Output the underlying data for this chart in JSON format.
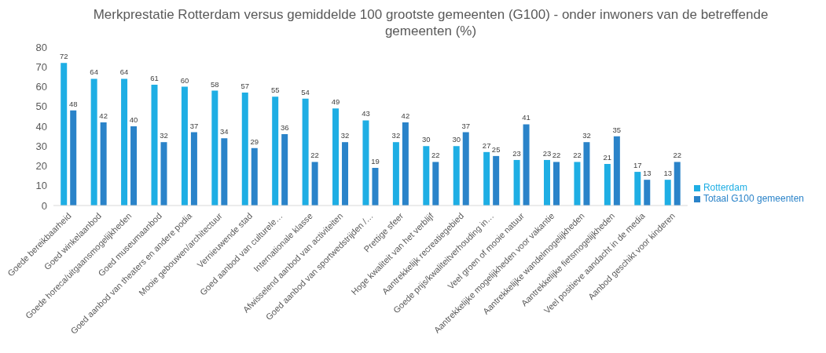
{
  "chart_data": {
    "type": "bar",
    "title": "Merkprestatie Rotterdam versus gemiddelde 100 grootste gemeenten (G100) - onder inwoners van de betreffende gemeenten (%)",
    "categories": [
      "Goede bereikbaarheid",
      "Goed winkelaanbod",
      "Goede horeca/uitgaansmogelijkheden",
      "Goed museumaanbod",
      "Goed aanbod van theaters en andere podia",
      "Mooie gebouwen/architectuur",
      "Vernieuwende stad",
      "Goed aanbod van culturele…",
      "Internationale klasse",
      "Afwisselend aanbod van activiteiten",
      "Goed aanbod van sportwedstrijden /…",
      "Prettige sfeer",
      "Hoge kwaliteit van het verblijf",
      "Aantrekkelijk recreatiegebied",
      "Goede prijs/kwaliteitverhouding in…",
      "Veel groen of mooie natuur",
      "Aantrekkelijke mogelijkheden voor vakantie",
      "Aantrekkelijke wandelmogelijkheden",
      "Aantrekkelijke fietsmogelijkheden",
      "Veel positieve aandacht in de media",
      "Aanbod geschikt voor kinderen"
    ],
    "series": [
      {
        "name": "Rotterdam",
        "color": "#1eaee4",
        "values": [
          72,
          64,
          64,
          61,
          60,
          58,
          57,
          55,
          54,
          49,
          43,
          32,
          30,
          30,
          27,
          23,
          23,
          22,
          21,
          17,
          13
        ]
      },
      {
        "name": "Totaal G100 gemeenten",
        "color": "#2a83c9",
        "values": [
          48,
          42,
          40,
          32,
          37,
          34,
          29,
          36,
          22,
          32,
          19,
          42,
          22,
          37,
          25,
          41,
          22,
          32,
          35,
          13,
          22
        ]
      }
    ],
    "ylim": [
      0,
      80
    ],
    "yticks": [
      0,
      10,
      20,
      30,
      40,
      50,
      60,
      70,
      80
    ],
    "grid": false,
    "legend": "right",
    "data_labels": true
  }
}
